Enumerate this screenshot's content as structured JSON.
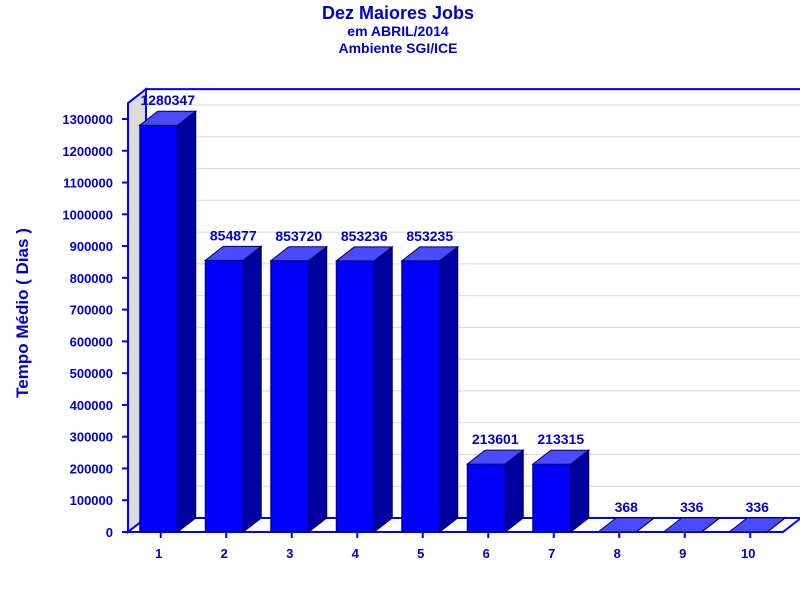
{
  "chart_data": {
    "type": "bar",
    "title": "Dez Maiores Jobs",
    "subtitle_lines": [
      "em ABRIL/2014",
      "Ambiente SGI/ICE"
    ],
    "xlabel": "",
    "ylabel": "Tempo Médio ( Dias )",
    "categories": [
      "1",
      "2",
      "3",
      "4",
      "5",
      "6",
      "7",
      "8",
      "9",
      "10"
    ],
    "values": [
      1280347,
      854877,
      853720,
      853236,
      853235,
      213601,
      213315,
      368,
      336,
      336
    ],
    "value_labels": [
      "1280347",
      "854877",
      "853720",
      "853236",
      "853235",
      "213601",
      "213315",
      "368",
      "336",
      "336"
    ],
    "ylim": [
      0,
      1350000
    ],
    "yticks": [
      0,
      100000,
      200000,
      300000,
      400000,
      500000,
      600000,
      700000,
      800000,
      900000,
      1000000,
      1100000,
      1200000,
      1300000
    ],
    "ytick_labels": [
      "0",
      "100000",
      "200000",
      "300000",
      "400000",
      "500000",
      "600000",
      "700000",
      "800000",
      "900000",
      "1000000",
      "1100000",
      "1200000",
      "1300000"
    ],
    "grid": true,
    "style": "3d",
    "colors": {
      "text": "#0000cc",
      "bar_front": "#0000ff",
      "bar_top": "#4a4aff",
      "bar_side": "#0000a0",
      "frame": "#0000ff",
      "wall": "#dcdcdc",
      "grid": "#d8d8d8"
    }
  }
}
